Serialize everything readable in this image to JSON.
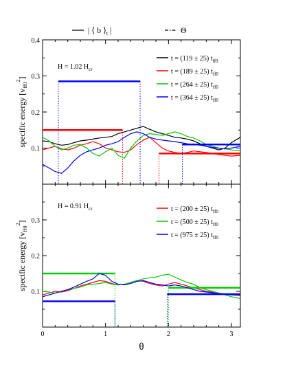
{
  "legend_top": [
    {
      "label": "| ⟨ b ⟩",
      "sub": "t",
      "suffix": " |",
      "dash": "solid"
    },
    {
      "label": "Θ",
      "dash": "dashdot"
    }
  ],
  "colors": {
    "black": "#000000",
    "red": "#ff0000",
    "green": "#00cc00",
    "blue": "#0000ff"
  },
  "chart_data": [
    {
      "type": "line",
      "annotation": {
        "text": "H = 1.02 H",
        "sub": "cr"
      },
      "ylabel": {
        "text": "specific energy  [v",
        "sub": "ff0",
        "sup": "2",
        "suffix": "]"
      },
      "xlim": [
        0,
        3.14159
      ],
      "ylim": [
        0,
        0.4
      ],
      "yticks": [
        "0.1",
        "0.2",
        "0.3",
        "0.4"
      ],
      "series": [
        {
          "name": "t = (119 ± 25) t",
          "sub": "ff0",
          "color": "black",
          "x": [
            0,
            0.1,
            0.2,
            0.3,
            0.4,
            0.5,
            0.6,
            0.7,
            0.8,
            0.9,
            1.0,
            1.1,
            1.2,
            1.3,
            1.4,
            1.5,
            1.6,
            1.7,
            1.8,
            1.9,
            2.0,
            2.1,
            2.2,
            2.3,
            2.4,
            2.5,
            2.6,
            2.7,
            2.8,
            2.9,
            3.0,
            3.14
          ],
          "values": [
            0.12,
            0.118,
            0.112,
            0.108,
            0.11,
            0.115,
            0.12,
            0.122,
            0.125,
            0.128,
            0.13,
            0.132,
            0.14,
            0.145,
            0.15,
            0.155,
            0.16,
            0.152,
            0.145,
            0.14,
            0.135,
            0.13,
            0.128,
            0.125,
            0.12,
            0.112,
            0.105,
            0.1,
            0.095,
            0.1,
            0.115,
            0.13
          ],
          "levels": []
        },
        {
          "name": "t = (189 ± 25) t",
          "sub": "ff0",
          "color": "red",
          "x": [
            0,
            0.1,
            0.2,
            0.3,
            0.4,
            0.5,
            0.6,
            0.7,
            0.8,
            0.9,
            1.0,
            1.1,
            1.2,
            1.3,
            1.4,
            1.5,
            1.6,
            1.7,
            1.8,
            1.9,
            2.0,
            2.1,
            2.2,
            2.3,
            2.4,
            2.5,
            2.6,
            2.7,
            2.8,
            2.9,
            3.0,
            3.14
          ],
          "values": [
            0.095,
            0.1,
            0.105,
            0.098,
            0.095,
            0.1,
            0.108,
            0.112,
            0.118,
            0.112,
            0.1,
            0.095,
            0.09,
            0.088,
            0.095,
            0.11,
            0.122,
            0.13,
            0.115,
            0.1,
            0.092,
            0.088,
            0.085,
            0.088,
            0.092,
            0.09,
            0.088,
            0.085,
            0.082,
            0.08,
            0.078,
            0.08
          ],
          "levels": [
            {
              "x0": 0,
              "x1": 1.27,
              "y": 0.15
            },
            {
              "x0": 1.85,
              "x1": 3.14,
              "y": 0.085
            }
          ]
        },
        {
          "name": "t = (264 ± 25) t",
          "sub": "ff0",
          "color": "green",
          "x": [
            0,
            0.1,
            0.2,
            0.3,
            0.4,
            0.5,
            0.6,
            0.7,
            0.8,
            0.9,
            1.0,
            1.1,
            1.2,
            1.3,
            1.4,
            1.5,
            1.6,
            1.7,
            1.8,
            1.9,
            2.0,
            2.1,
            2.2,
            2.3,
            2.4,
            2.5,
            2.6,
            2.7,
            2.8,
            2.9,
            3.0,
            3.14
          ],
          "values": [
            0.13,
            0.12,
            0.105,
            0.095,
            0.1,
            0.108,
            0.11,
            0.1,
            0.085,
            0.078,
            0.09,
            0.1,
            0.08,
            0.072,
            0.1,
            0.12,
            0.135,
            0.14,
            0.138,
            0.135,
            0.14,
            0.145,
            0.14,
            0.132,
            0.128,
            0.12,
            0.11,
            0.105,
            0.1,
            0.098,
            0.095,
            0.092
          ],
          "levels": []
        },
        {
          "name": "t = (364 ± 25) t",
          "sub": "ff0",
          "color": "blue",
          "x": [
            0,
            0.1,
            0.2,
            0.3,
            0.4,
            0.5,
            0.6,
            0.7,
            0.8,
            0.9,
            1.0,
            1.1,
            1.2,
            1.3,
            1.4,
            1.5,
            1.6,
            1.7,
            1.8,
            1.9,
            2.0,
            2.1,
            2.2,
            2.3,
            2.4,
            2.5,
            2.6,
            2.7,
            2.8,
            2.9,
            3.0,
            3.14
          ],
          "values": [
            0.055,
            0.045,
            0.035,
            0.03,
            0.045,
            0.065,
            0.08,
            0.09,
            0.095,
            0.1,
            0.108,
            0.112,
            0.118,
            0.13,
            0.14,
            0.145,
            0.14,
            0.13,
            0.125,
            0.122,
            0.12,
            0.118,
            0.115,
            0.112,
            0.11,
            0.108,
            0.105,
            0.102,
            0.1,
            0.098,
            0.1,
            0.105
          ],
          "levels": [
            {
              "x0": 0.25,
              "x1": 1.55,
              "y": 0.285
            },
            {
              "x0": 2.22,
              "x1": 3.14,
              "y": 0.11
            }
          ]
        }
      ]
    },
    {
      "type": "line",
      "annotation": {
        "text": "H = 0.91 H",
        "sub": "cr"
      },
      "ylabel": {
        "text": "specific energy  [v",
        "sub": "ff0",
        "sup": "2",
        "suffix": "]"
      },
      "xlabel": "θ",
      "xlim": [
        0,
        3.14159
      ],
      "ylim": [
        0,
        0.4
      ],
      "xticks": [
        "0",
        "1",
        "2",
        "3"
      ],
      "yticks": [
        "0.1",
        "0.2",
        "0.3"
      ],
      "series": [
        {
          "name": "t = (200 ± 25) t",
          "sub": "ff0",
          "color": "red",
          "x": [
            0,
            0.1,
            0.2,
            0.3,
            0.4,
            0.5,
            0.6,
            0.7,
            0.8,
            0.9,
            1.0,
            1.1,
            1.2,
            1.3,
            1.4,
            1.5,
            1.6,
            1.7,
            1.8,
            1.9,
            2.0,
            2.1,
            2.2,
            2.3,
            2.4,
            2.5,
            2.6,
            2.7,
            2.8,
            2.9,
            3.0,
            3.14
          ],
          "values": [
            0.09,
            0.095,
            0.1,
            0.098,
            0.102,
            0.108,
            0.115,
            0.12,
            0.125,
            0.13,
            0.128,
            0.122,
            0.118,
            0.12,
            0.125,
            0.13,
            0.128,
            0.122,
            0.118,
            0.115,
            0.12,
            0.125,
            0.12,
            0.115,
            0.11,
            0.105,
            0.1,
            0.098,
            0.095,
            0.092,
            0.09,
            0.088
          ],
          "levels": []
        },
        {
          "name": "t = (500 ± 25) t",
          "sub": "ff0",
          "color": "green",
          "x": [
            0,
            0.1,
            0.2,
            0.3,
            0.4,
            0.5,
            0.6,
            0.7,
            0.8,
            0.9,
            1.0,
            1.1,
            1.2,
            1.3,
            1.4,
            1.5,
            1.6,
            1.7,
            1.8,
            1.9,
            2.0,
            2.1,
            2.2,
            2.3,
            2.4,
            2.5,
            2.6,
            2.7,
            2.8,
            2.9,
            3.0,
            3.14
          ],
          "values": [
            0.1,
            0.098,
            0.095,
            0.1,
            0.105,
            0.108,
            0.112,
            0.118,
            0.12,
            0.122,
            0.125,
            0.12,
            0.118,
            0.12,
            0.125,
            0.13,
            0.135,
            0.138,
            0.14,
            0.145,
            0.148,
            0.14,
            0.132,
            0.125,
            0.12,
            0.11,
            0.105,
            0.1,
            0.095,
            0.09,
            0.085,
            0.08
          ],
          "levels": [
            {
              "x0": 0,
              "x1": 1.15,
              "y": 0.15
            },
            {
              "x0": 2.0,
              "x1": 3.14,
              "y": 0.11
            }
          ]
        },
        {
          "name": "t = (975 ± 25) t",
          "sub": "ff0",
          "color": "blue",
          "x": [
            0,
            0.1,
            0.2,
            0.3,
            0.4,
            0.5,
            0.6,
            0.7,
            0.8,
            0.9,
            1.0,
            1.1,
            1.2,
            1.3,
            1.4,
            1.5,
            1.6,
            1.7,
            1.8,
            1.9,
            2.0,
            2.1,
            2.2,
            2.3,
            2.4,
            2.5,
            2.6,
            2.7,
            2.8,
            2.9,
            3.0,
            3.14
          ],
          "values": [
            0.085,
            0.09,
            0.095,
            0.1,
            0.105,
            0.112,
            0.12,
            0.128,
            0.135,
            0.15,
            0.145,
            0.128,
            0.12,
            0.118,
            0.122,
            0.128,
            0.13,
            0.125,
            0.12,
            0.118,
            0.115,
            0.118,
            0.115,
            0.11,
            0.105,
            0.1,
            0.098,
            0.096,
            0.094,
            0.092,
            0.09,
            0.09
          ],
          "levels": [
            {
              "x0": 0,
              "x1": 1.15,
              "y": 0.072
            },
            {
              "x0": 1.98,
              "x1": 3.14,
              "y": 0.092
            }
          ]
        }
      ]
    }
  ]
}
